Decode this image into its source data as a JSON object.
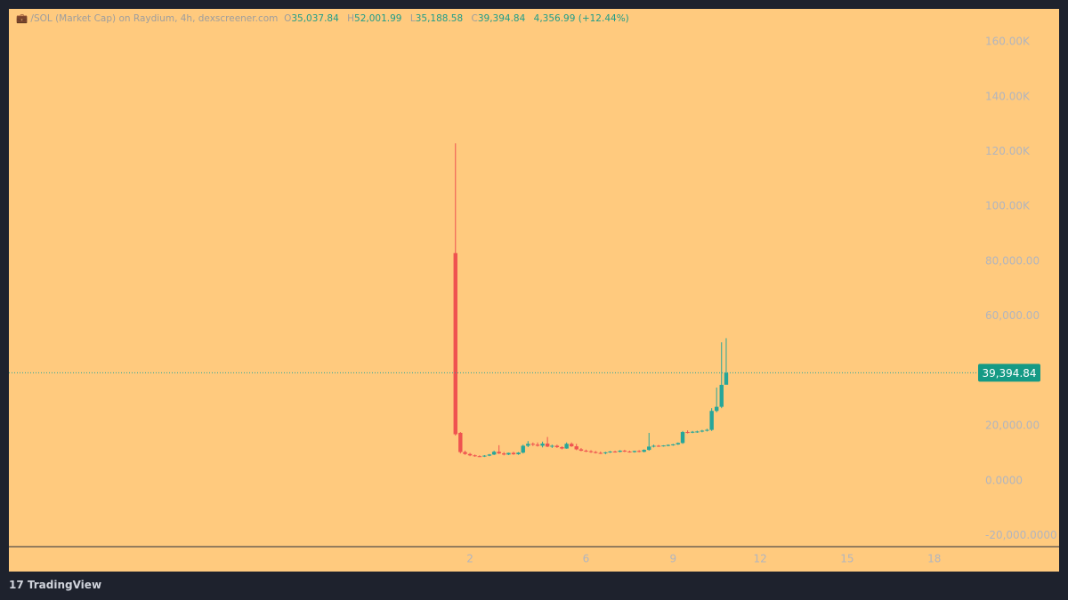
{
  "chart_data": {
    "type": "candlestick",
    "title": "/SOL (Market Cap) on Raydium, 4h, dexscreener.com",
    "header_items": [
      "O",
      "35,037.84",
      "H",
      "52,001.99",
      "L",
      "35,188.58",
      "C",
      "39,394.84",
      "4,356.99 (+12.44%)"
    ],
    "up_color": "#26a69a",
    "down_color": "#ef5350",
    "x": [
      1.5,
      1.67,
      1.83,
      2,
      2.17,
      2.33,
      2.5,
      2.67,
      2.83,
      3,
      3.17,
      3.33,
      3.5,
      3.67,
      3.83,
      4,
      4.17,
      4.33,
      4.5,
      4.67,
      4.83,
      5,
      5.17,
      5.33,
      5.5,
      5.67,
      5.83,
      6,
      6.17,
      6.33,
      6.5,
      6.67,
      6.83,
      7,
      7.17,
      7.33,
      7.5,
      7.67,
      7.83,
      8,
      8.17,
      8.33,
      8.5,
      8.67,
      8.83,
      9,
      9.17,
      9.33,
      9.5,
      9.67,
      9.83,
      10,
      10.17,
      10.33,
      10.5,
      10.67,
      10.83
    ],
    "open": [
      83000,
      17500,
      10500,
      9800,
      9300,
      9000,
      8900,
      9200,
      9600,
      10600,
      10000,
      9600,
      10200,
      9700,
      10300,
      12800,
      13500,
      13200,
      12800,
      13600,
      12500,
      12800,
      12300,
      11800,
      13500,
      12600,
      11500,
      11000,
      10800,
      10500,
      10200,
      10100,
      10400,
      10700,
      10600,
      11000,
      10700,
      10500,
      10900,
      10600,
      11300,
      12500,
      12800,
      12700,
      12900,
      13100,
      13300,
      13800,
      17800,
      17600,
      17900,
      18000,
      18300,
      18600,
      25500,
      27000,
      35037.84
    ],
    "high": [
      123000,
      17800,
      11000,
      10200,
      9600,
      9300,
      9400,
      9800,
      11000,
      13000,
      10500,
      10300,
      10600,
      10500,
      13200,
      14500,
      14000,
      14000,
      14300,
      16000,
      13200,
      13200,
      12600,
      14000,
      14000,
      13500,
      12000,
      11400,
      11200,
      10900,
      10700,
      10600,
      10900,
      11000,
      11200,
      11300,
      11000,
      11000,
      11200,
      11500,
      17500,
      13200,
      13100,
      13000,
      13300,
      13500,
      14000,
      18200,
      18400,
      18200,
      18300,
      18600,
      19000,
      26500,
      34000,
      50500,
      52001.99
    ],
    "low": [
      16500,
      10000,
      9500,
      9000,
      8800,
      8700,
      8700,
      9000,
      9400,
      9800,
      9300,
      9400,
      9500,
      9500,
      10000,
      12300,
      12700,
      12500,
      12200,
      12300,
      12000,
      12000,
      11500,
      11700,
      12400,
      11200,
      10800,
      10500,
      10200,
      10000,
      9800,
      9700,
      10200,
      10300,
      10400,
      10500,
      10300,
      10300,
      10400,
      10400,
      11000,
      12200,
      12400,
      12500,
      12600,
      12800,
      13100,
      13500,
      17300,
      17400,
      17500,
      17700,
      18000,
      18200,
      25000,
      26500,
      35188.58
    ],
    "close": [
      17000,
      10500,
      9800,
      9300,
      9000,
      8900,
      9200,
      9600,
      10600,
      10000,
      9600,
      10200,
      9700,
      10300,
      12800,
      13500,
      13200,
      12800,
      13600,
      12500,
      12800,
      12300,
      11800,
      13500,
      12600,
      11500,
      11000,
      10800,
      10500,
      10200,
      10100,
      10400,
      10700,
      10600,
      11000,
      10700,
      10500,
      10900,
      10600,
      11300,
      12500,
      12800,
      12700,
      12900,
      13100,
      13300,
      13800,
      17800,
      17600,
      17900,
      18000,
      18300,
      18600,
      25500,
      27000,
      35000,
      39394.84
    ],
    "last_price": {
      "value": 39394.84,
      "label": "39,394.84"
    },
    "xlim": [
      -13.89,
      19.45
    ],
    "xticks": [
      2,
      6,
      9,
      12,
      15,
      18
    ],
    "ylim": [
      -23968,
      171984
    ],
    "yticks": [
      {
        "value": 160000,
        "label": "160.00K"
      },
      {
        "value": 140000,
        "label": "140.00K"
      },
      {
        "value": 120000,
        "label": "120.00K"
      },
      {
        "value": 100000,
        "label": "100.00K"
      },
      {
        "value": 80000,
        "label": "80,000.00"
      },
      {
        "value": 60000,
        "label": "60,000.00"
      },
      {
        "value": 20000,
        "label": "20,000.00"
      },
      {
        "value": 0,
        "label": "0.0000"
      },
      {
        "value": -20000,
        "label": "-20,000.0000"
      }
    ]
  },
  "footer": "TradingView"
}
